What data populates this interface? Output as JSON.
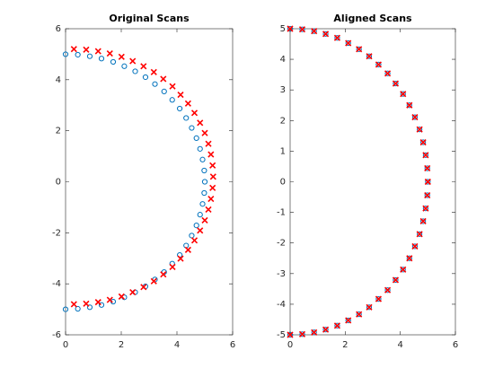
{
  "chart_data": [
    {
      "type": "scatter",
      "title": "Original Scans",
      "xlim": [
        0,
        6
      ],
      "ylim": [
        -6,
        6
      ],
      "xticks": [
        0,
        2,
        4,
        6
      ],
      "yticks": [
        -6,
        -4,
        -2,
        0,
        2,
        4,
        6
      ],
      "series": [
        {
          "color": "#0072bd",
          "marker": "o",
          "x": [
            0,
            0.44,
            0.87,
            1.29,
            1.71,
            2.11,
            2.5,
            2.87,
            3.21,
            3.54,
            3.83,
            4.1,
            4.33,
            4.53,
            4.7,
            4.83,
            4.92,
            4.98,
            5,
            4.98,
            4.92,
            4.83,
            4.7,
            4.53,
            4.33,
            4.1,
            3.83,
            3.54,
            3.21,
            2.87,
            2.5,
            2.11,
            1.71,
            1.29,
            0.87,
            0.44,
            0
          ],
          "values": [
            -5,
            -4.98,
            -4.92,
            -4.83,
            -4.7,
            -4.53,
            -4.33,
            -4.1,
            -3.83,
            -3.54,
            -3.21,
            -2.87,
            -2.5,
            -2.11,
            -1.71,
            -1.29,
            -0.87,
            -0.44,
            0,
            0.44,
            0.87,
            1.29,
            1.71,
            2.11,
            2.5,
            2.87,
            3.21,
            3.54,
            3.83,
            4.1,
            4.33,
            4.53,
            4.7,
            4.83,
            4.92,
            4.98,
            5
          ]
        },
        {
          "color": "#ff0000",
          "marker": "x",
          "x": [
            0.3,
            0.74,
            1.17,
            1.59,
            2.01,
            2.41,
            2.8,
            3.17,
            3.51,
            3.84,
            4.13,
            4.4,
            4.63,
            4.83,
            5,
            5.13,
            5.22,
            5.28,
            5.3,
            5.28,
            5.22,
            5.13,
            5,
            4.83,
            4.63,
            4.4,
            4.13,
            3.84,
            3.51,
            3.17,
            2.8,
            2.41,
            2.01,
            1.59,
            1.17,
            0.74,
            0.3
          ],
          "values": [
            -4.8,
            -4.78,
            -4.72,
            -4.63,
            -4.5,
            -4.33,
            -4.13,
            -3.9,
            -3.63,
            -3.34,
            -3.01,
            -2.67,
            -2.3,
            -1.91,
            -1.51,
            -1.09,
            -0.67,
            -0.24,
            0.2,
            0.64,
            1.07,
            1.49,
            1.91,
            2.31,
            2.7,
            3.07,
            3.41,
            3.74,
            4.03,
            4.3,
            4.53,
            4.73,
            4.9,
            5.03,
            5.12,
            5.18,
            5.2
          ]
        }
      ]
    },
    {
      "type": "scatter",
      "title": "Aligned Scans",
      "xlim": [
        0,
        6
      ],
      "ylim": [
        -5,
        5
      ],
      "xticks": [
        0,
        2,
        4,
        6
      ],
      "yticks": [
        -5,
        -4,
        -3,
        -2,
        -1,
        0,
        1,
        2,
        3,
        4,
        5
      ],
      "series": [
        {
          "color": "#0072bd",
          "marker": "o",
          "x": [
            0,
            0.44,
            0.87,
            1.29,
            1.71,
            2.11,
            2.5,
            2.87,
            3.21,
            3.54,
            3.83,
            4.1,
            4.33,
            4.53,
            4.7,
            4.83,
            4.92,
            4.98,
            5,
            4.98,
            4.92,
            4.83,
            4.7,
            4.53,
            4.33,
            4.1,
            3.83,
            3.54,
            3.21,
            2.87,
            2.5,
            2.11,
            1.71,
            1.29,
            0.87,
            0.44,
            0
          ],
          "values": [
            -5,
            -4.98,
            -4.92,
            -4.83,
            -4.7,
            -4.53,
            -4.33,
            -4.1,
            -3.83,
            -3.54,
            -3.21,
            -2.87,
            -2.5,
            -2.11,
            -1.71,
            -1.29,
            -0.87,
            -0.44,
            0,
            0.44,
            0.87,
            1.29,
            1.71,
            2.11,
            2.5,
            2.87,
            3.21,
            3.54,
            3.83,
            4.1,
            4.33,
            4.53,
            4.7,
            4.83,
            4.92,
            4.98,
            5
          ]
        },
        {
          "color": "#ff0000",
          "marker": "x",
          "x": [
            0,
            0.44,
            0.87,
            1.29,
            1.71,
            2.11,
            2.5,
            2.87,
            3.21,
            3.54,
            3.83,
            4.1,
            4.33,
            4.53,
            4.7,
            4.83,
            4.92,
            4.98,
            5,
            4.98,
            4.92,
            4.83,
            4.7,
            4.53,
            4.33,
            4.1,
            3.83,
            3.54,
            3.21,
            2.87,
            2.5,
            2.11,
            1.71,
            1.29,
            0.87,
            0.44,
            0
          ],
          "values": [
            -5,
            -4.98,
            -4.92,
            -4.83,
            -4.7,
            -4.53,
            -4.33,
            -4.1,
            -3.83,
            -3.54,
            -3.21,
            -2.87,
            -2.5,
            -2.11,
            -1.71,
            -1.29,
            -0.87,
            -0.44,
            0,
            0.44,
            0.87,
            1.29,
            1.71,
            2.11,
            2.5,
            2.87,
            3.21,
            3.54,
            3.83,
            4.1,
            4.33,
            4.53,
            4.7,
            4.83,
            4.92,
            4.98,
            5
          ]
        }
      ]
    }
  ]
}
